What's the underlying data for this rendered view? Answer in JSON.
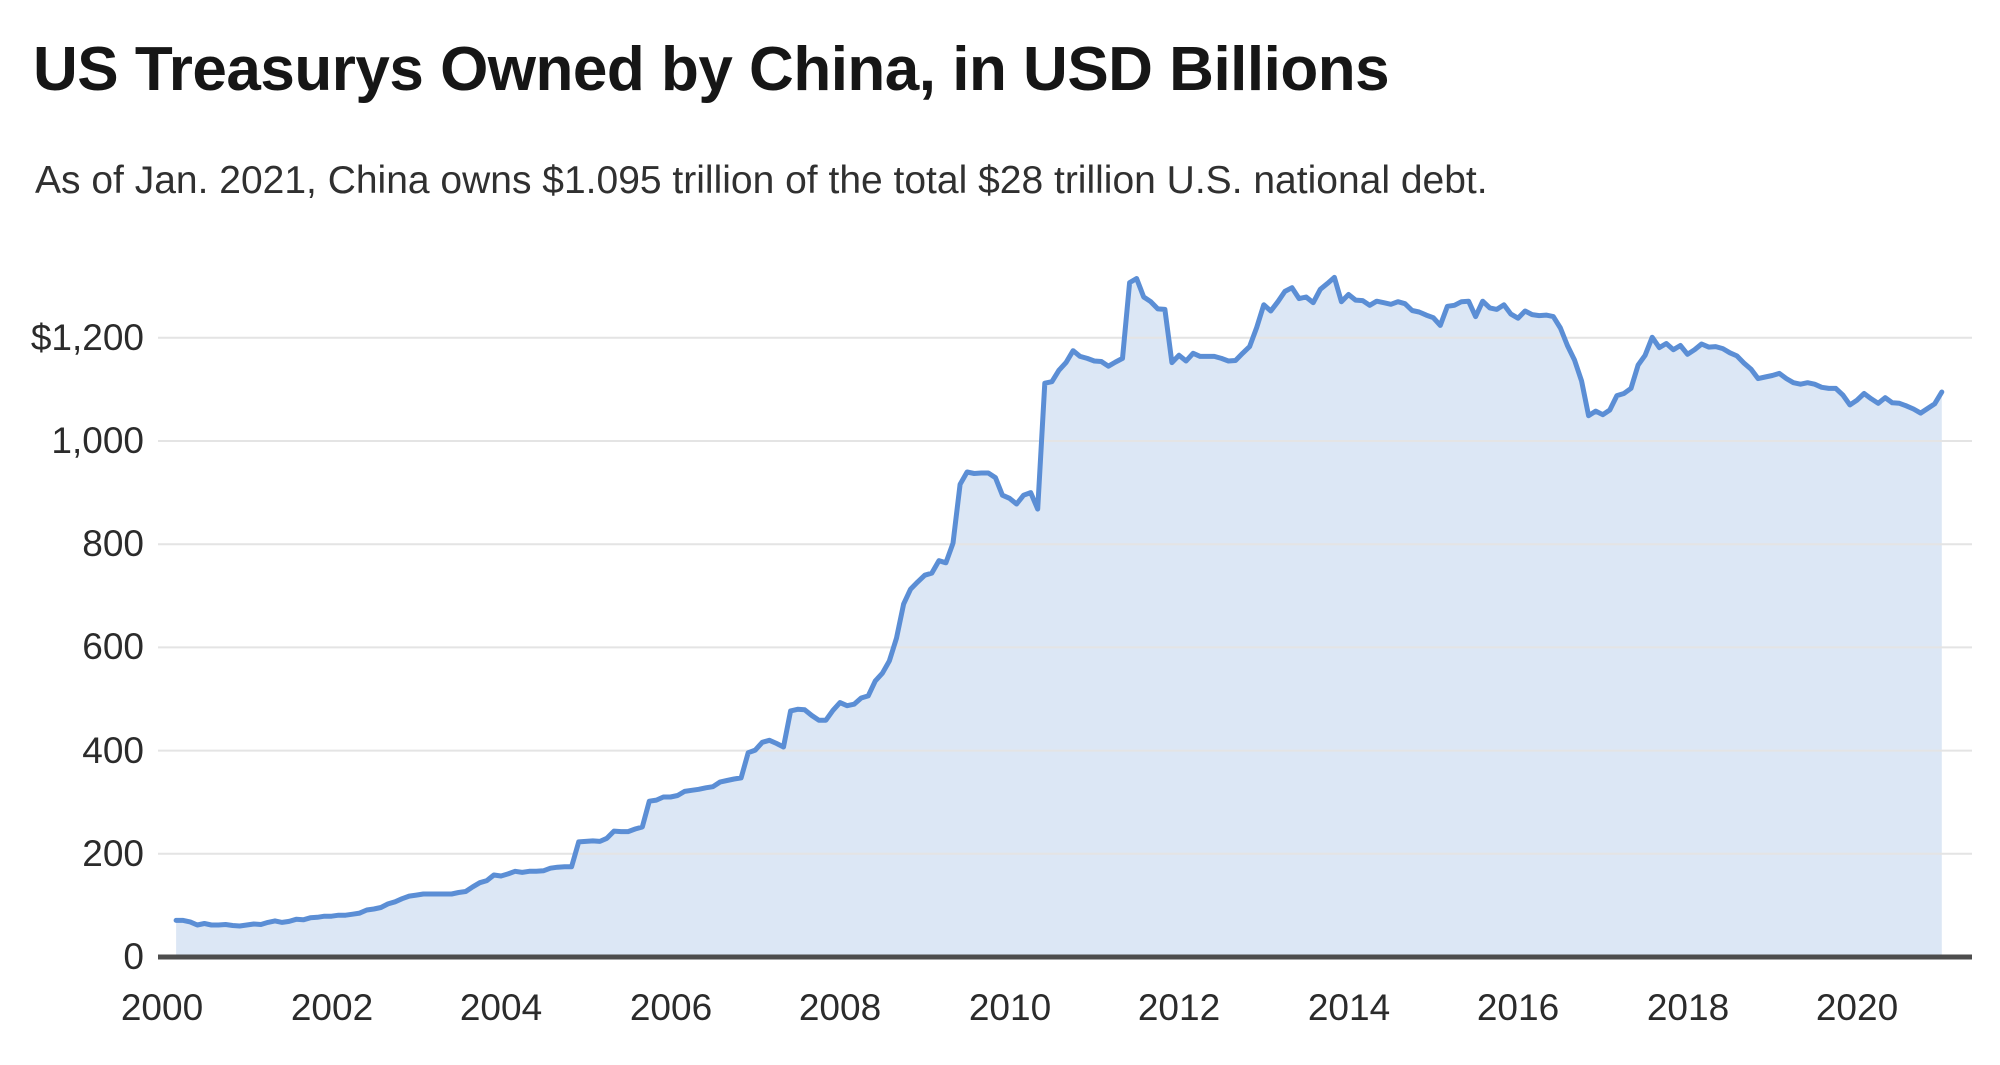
{
  "header": {
    "title": "US Treasurys Owned by China, in USD Billions",
    "subtitle": "As of Jan. 2021, China owns $1.095 trillion of the total $28 trillion U.S. national debt."
  },
  "chart_data": {
    "type": "area",
    "title": "US Treasurys Owned by China, in USD Billions",
    "subtitle": "As of Jan. 2021, China owns $1.095 trillion of the total $28 trillion U.S. national debt.",
    "unit": "USD billions",
    "xlabel": "",
    "ylabel": "",
    "xlim": [
      2000,
      2021.35
    ],
    "ylim": [
      0,
      1340
    ],
    "grid": "horizontal",
    "legend_position": "none",
    "x_ticks": [
      {
        "value": 2000,
        "label": "2000"
      },
      {
        "value": 2002,
        "label": "2002"
      },
      {
        "value": 2004,
        "label": "2004"
      },
      {
        "value": 2006,
        "label": "2006"
      },
      {
        "value": 2008,
        "label": "2008"
      },
      {
        "value": 2010,
        "label": "2010"
      },
      {
        "value": 2012,
        "label": "2012"
      },
      {
        "value": 2014,
        "label": "2014"
      },
      {
        "value": 2016,
        "label": "2016"
      },
      {
        "value": 2018,
        "label": "2018"
      },
      {
        "value": 2020,
        "label": "2020"
      }
    ],
    "y_ticks": [
      {
        "value": 1200,
        "label": "$1,200"
      },
      {
        "value": 1000,
        "label": "1,000"
      },
      {
        "value": 800,
        "label": "800"
      },
      {
        "value": 600,
        "label": "600"
      },
      {
        "value": 400,
        "label": "400"
      },
      {
        "value": 200,
        "label": "200"
      },
      {
        "value": 0,
        "label": "0"
      }
    ],
    "series": [
      {
        "name": "US Treasury securities held by China (USD billions)",
        "start": "2000-03",
        "interval": "monthly",
        "values": [
          71,
          71,
          68,
          62,
          65,
          62,
          62,
          63,
          61,
          60,
          62,
          64,
          63,
          67,
          70,
          67,
          69,
          73,
          72,
          76,
          77,
          79,
          79,
          81,
          81,
          83,
          85,
          91,
          93,
          96,
          103,
          107,
          113,
          118,
          120,
          122,
          122,
          122,
          122,
          122,
          125,
          127,
          136,
          144,
          148,
          159,
          157,
          161,
          166,
          164,
          166,
          166,
          167,
          172,
          174,
          175,
          175,
          223,
          224,
          225,
          224,
          230,
          244,
          243,
          243,
          248,
          252,
          302,
          304,
          310,
          310,
          313,
          321,
          323,
          325,
          328,
          330,
          339,
          342,
          345,
          347,
          396,
          401,
          416,
          420,
          414,
          407,
          477,
          480,
          479,
          468,
          459,
          459,
          478,
          493,
          487,
          490,
          502,
          506,
          535,
          550,
          574,
          618,
          684,
          713,
          727,
          740,
          744,
          768,
          764,
          802,
          916,
          940,
          937,
          938,
          938,
          929,
          895,
          889,
          878,
          895,
          900,
          868,
          1112,
          1115,
          1137,
          1152,
          1175,
          1164,
          1160,
          1155,
          1154,
          1145,
          1153,
          1160,
          1307,
          1315,
          1279,
          1270,
          1256,
          1255,
          1152,
          1166,
          1155,
          1170,
          1164,
          1164,
          1164,
          1160,
          1155,
          1156,
          1170,
          1183,
          1220,
          1264,
          1252,
          1270,
          1290,
          1297,
          1276,
          1279,
          1268,
          1294,
          1305,
          1317,
          1270,
          1284,
          1273,
          1272,
          1263,
          1271,
          1268,
          1265,
          1270,
          1266,
          1253,
          1250,
          1244,
          1239,
          1224,
          1261,
          1263,
          1270,
          1271,
          1241,
          1271,
          1258,
          1255,
          1264,
          1246,
          1238,
          1252,
          1245,
          1243,
          1244,
          1241,
          1219,
          1185,
          1157,
          1116,
          1049,
          1058,
          1051,
          1060,
          1088,
          1092,
          1102,
          1147,
          1166,
          1201,
          1181,
          1189,
          1177,
          1185,
          1168,
          1177,
          1188,
          1182,
          1183,
          1179,
          1171,
          1165,
          1151,
          1139,
          1121,
          1124,
          1127,
          1131,
          1121,
          1113,
          1110,
          1113,
          1110,
          1104,
          1102,
          1102,
          1089,
          1070,
          1079,
          1092,
          1082,
          1073,
          1084,
          1074,
          1073,
          1068,
          1062,
          1054,
          1063,
          1072,
          1095
        ]
      }
    ],
    "colors": {
      "line": "#5b8ed5",
      "fill": "#dce7f5",
      "grid": "#e4e4e4",
      "axis": "#4d4d4d",
      "tick_text": "#2b2b2b",
      "title_text": "#161616",
      "subtitle_text": "#303030"
    }
  }
}
